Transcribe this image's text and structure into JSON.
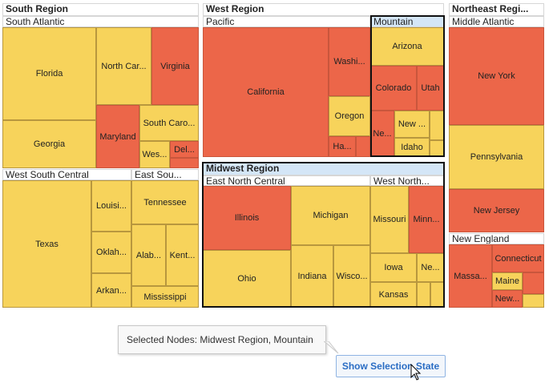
{
  "colors": {
    "high": "#ec6649",
    "low": "#f7d35b",
    "selected_header": "#d4e6f7",
    "button_text": "#2a6dc4"
  },
  "treemap": {
    "regions": [
      {
        "id": "south",
        "label": "South Region",
        "selected": false,
        "divisions": [
          {
            "id": "south-atlantic",
            "label": "South Atlantic",
            "selected": false,
            "states": [
              {
                "label": "Florida",
                "level": "low"
              },
              {
                "label": "Georgia",
                "level": "low"
              },
              {
                "label": "North Car...",
                "level": "low"
              },
              {
                "label": "Virginia",
                "level": "high"
              },
              {
                "label": "Maryland",
                "level": "high"
              },
              {
                "label": "South Caro...",
                "level": "low"
              },
              {
                "label": "Wes...",
                "level": "low"
              },
              {
                "label": "Del...",
                "level": "high"
              },
              {
                "label": "",
                "level": "high"
              }
            ]
          },
          {
            "id": "west-south-central",
            "label": "West South Central",
            "selected": false,
            "states": [
              {
                "label": "Texas",
                "level": "low"
              },
              {
                "label": "Louisi...",
                "level": "low"
              },
              {
                "label": "Oklah...",
                "level": "low"
              },
              {
                "label": "Arkan...",
                "level": "low"
              }
            ]
          },
          {
            "id": "east-south-central",
            "label": "East Sou...",
            "selected": false,
            "states": [
              {
                "label": "Tennessee",
                "level": "low"
              },
              {
                "label": "Alab...",
                "level": "low"
              },
              {
                "label": "Kent...",
                "level": "low"
              },
              {
                "label": "Mississippi",
                "level": "low"
              }
            ]
          }
        ]
      },
      {
        "id": "west",
        "label": "West Region",
        "selected": false,
        "divisions": [
          {
            "id": "pacific",
            "label": "Pacific",
            "selected": false,
            "states": [
              {
                "label": "California",
                "level": "high"
              },
              {
                "label": "Washi...",
                "level": "high"
              },
              {
                "label": "Oregon",
                "level": "low"
              },
              {
                "label": "Ha...",
                "level": "high"
              },
              {
                "label": "",
                "level": "high"
              }
            ]
          },
          {
            "id": "mountain",
            "label": "Mountain",
            "selected": true,
            "states": [
              {
                "label": "Arizona",
                "level": "low"
              },
              {
                "label": "Colorado",
                "level": "high"
              },
              {
                "label": "Utah",
                "level": "high"
              },
              {
                "label": "Ne...",
                "level": "high"
              },
              {
                "label": "New ...",
                "level": "low"
              },
              {
                "label": "Idaho",
                "level": "low"
              },
              {
                "label": "",
                "level": "low"
              },
              {
                "label": "",
                "level": "low"
              }
            ]
          }
        ]
      },
      {
        "id": "midwest",
        "label": "Midwest Region",
        "selected": true,
        "divisions": [
          {
            "id": "east-north-central",
            "label": "East North Central",
            "selected": false,
            "states": [
              {
                "label": "Illinois",
                "level": "high"
              },
              {
                "label": "Ohio",
                "level": "low"
              },
              {
                "label": "Michigan",
                "level": "low"
              },
              {
                "label": "Indiana",
                "level": "low"
              },
              {
                "label": "Wisco...",
                "level": "low"
              }
            ]
          },
          {
            "id": "west-north-central",
            "label": "West North...",
            "selected": false,
            "states": [
              {
                "label": "Missouri",
                "level": "low"
              },
              {
                "label": "Minn...",
                "level": "high"
              },
              {
                "label": "Iowa",
                "level": "low"
              },
              {
                "label": "Ne...",
                "level": "low"
              },
              {
                "label": "Kansas",
                "level": "low"
              },
              {
                "label": "",
                "level": "low"
              },
              {
                "label": "",
                "level": "low"
              }
            ]
          }
        ]
      },
      {
        "id": "northeast",
        "label": "Northeast Regi...",
        "selected": false,
        "divisions": [
          {
            "id": "middle-atlantic",
            "label": "Middle Atlantic",
            "selected": false,
            "states": [
              {
                "label": "New York",
                "level": "high"
              },
              {
                "label": "Pennsylvania",
                "level": "low"
              },
              {
                "label": "New Jersey",
                "level": "high"
              }
            ]
          },
          {
            "id": "new-england",
            "label": "New England",
            "selected": false,
            "states": [
              {
                "label": "Massa...",
                "level": "high"
              },
              {
                "label": "Connecticut",
                "level": "high"
              },
              {
                "label": "Maine",
                "level": "low"
              },
              {
                "label": "",
                "level": "high"
              },
              {
                "label": "New...",
                "level": "high"
              },
              {
                "label": "",
                "level": "low"
              }
            ]
          }
        ]
      }
    ]
  },
  "tooltip": {
    "text": "Selected Nodes: Midwest Region, Mountain"
  },
  "button": {
    "label": "Show Selection State"
  }
}
